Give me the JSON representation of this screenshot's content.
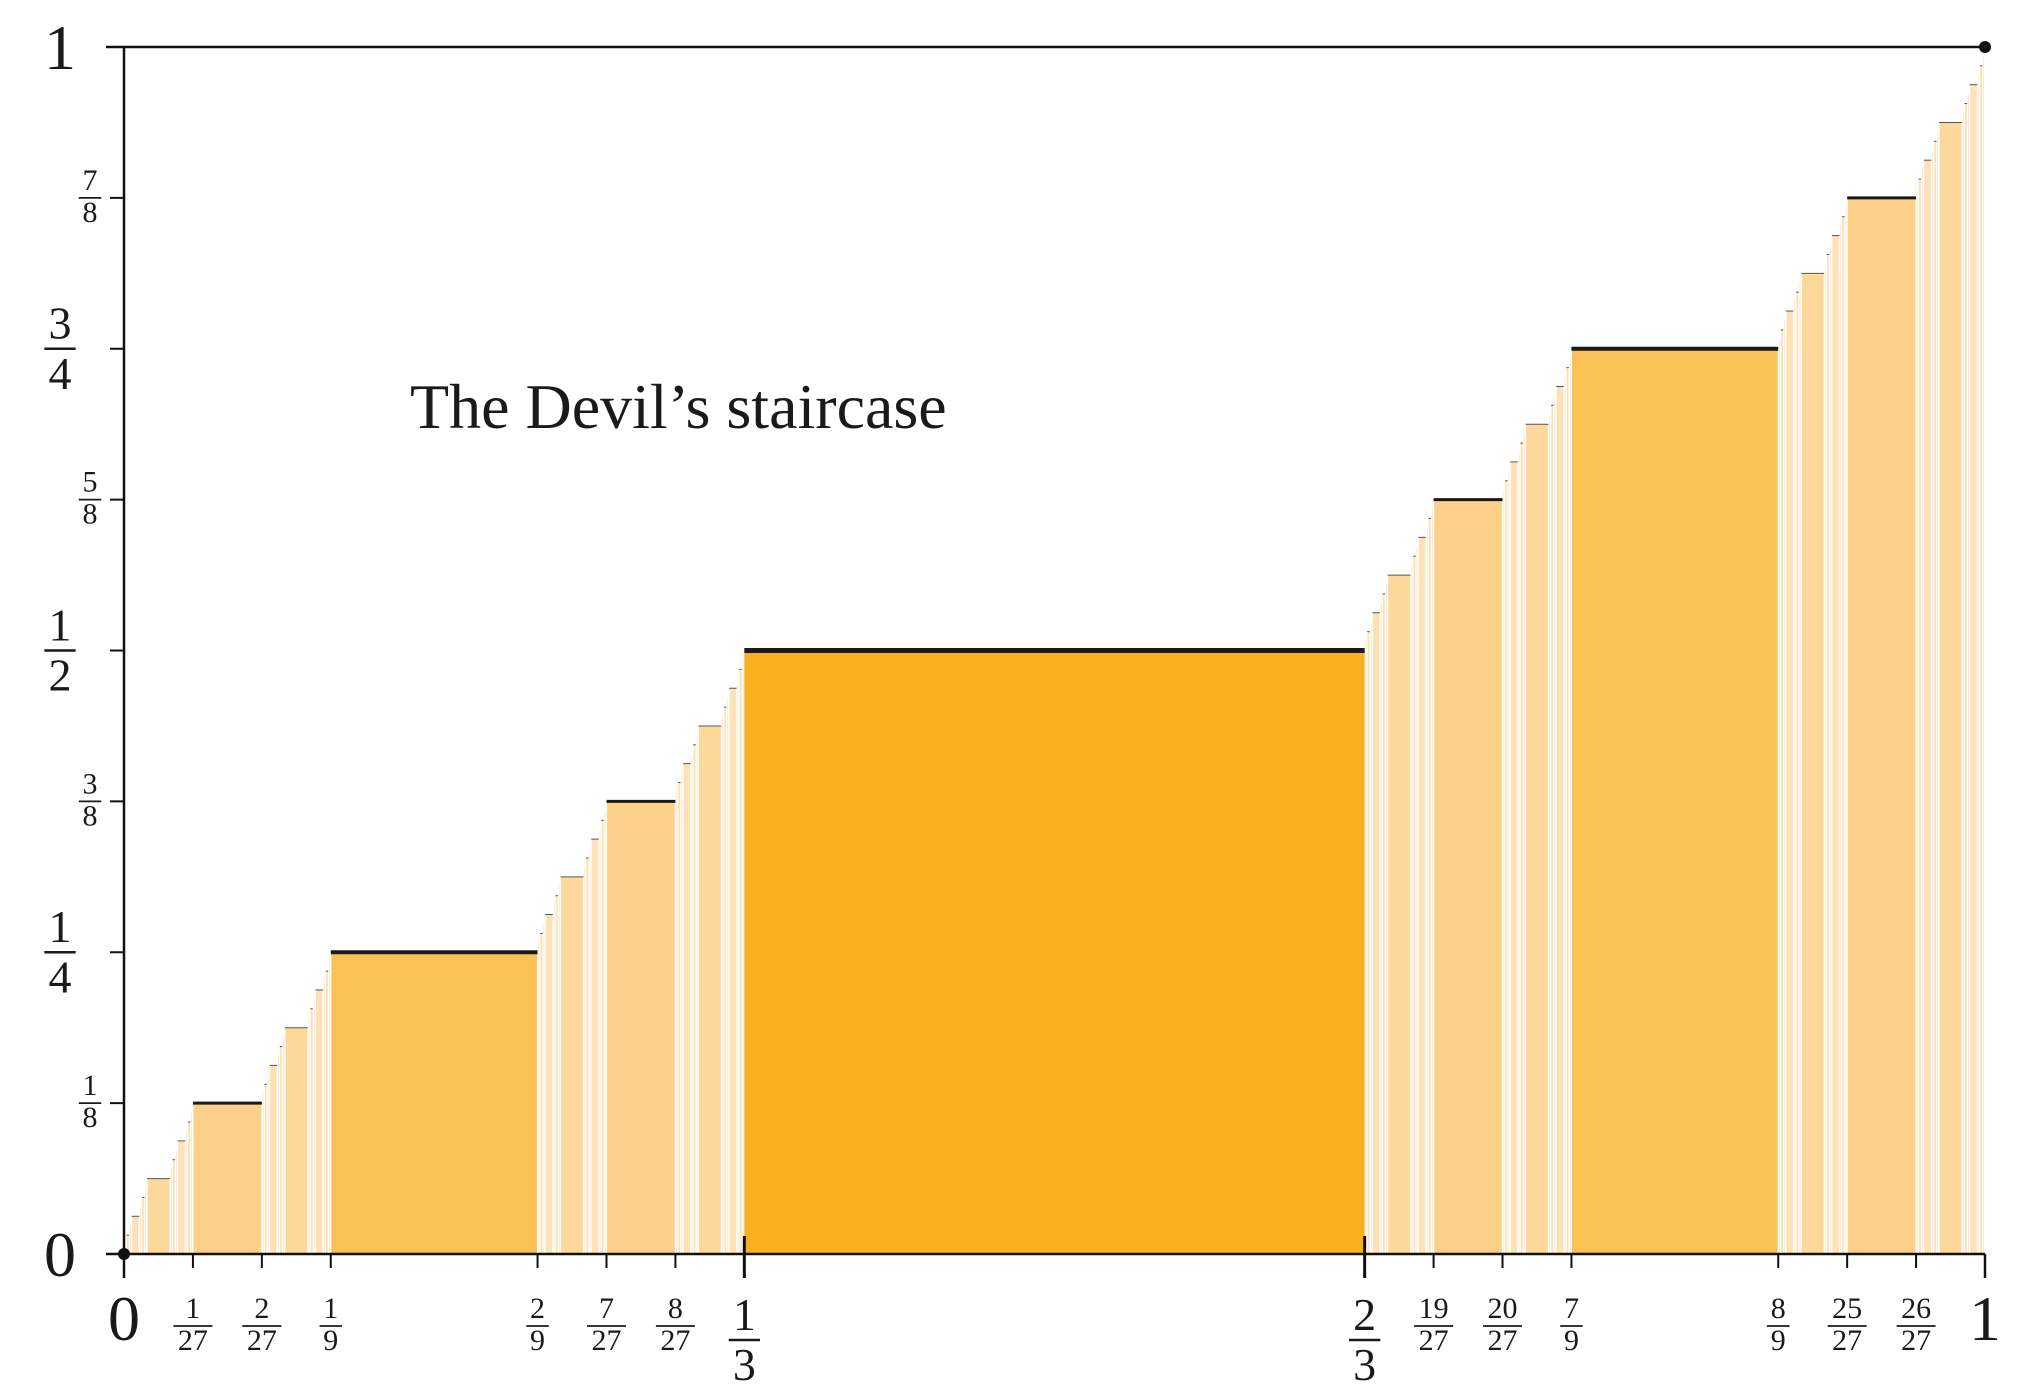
{
  "chart_data": {
    "type": "line",
    "title": "The Devil’s staircase",
    "xlim": [
      0,
      1
    ],
    "ylim": [
      0,
      1
    ],
    "grid": false,
    "steps": [
      {
        "x0": "1/3",
        "x1": "2/3",
        "y": "1/2",
        "level": 1
      },
      {
        "x0": "1/9",
        "x1": "2/9",
        "y": "1/4",
        "level": 2
      },
      {
        "x0": "7/9",
        "x1": "8/9",
        "y": "3/4",
        "level": 2
      },
      {
        "x0": "1/27",
        "x1": "2/27",
        "y": "1/8",
        "level": 3
      },
      {
        "x0": "7/27",
        "x1": "8/27",
        "y": "3/8",
        "level": 3
      },
      {
        "x0": "19/27",
        "x1": "20/27",
        "y": "5/8",
        "level": 3
      },
      {
        "x0": "25/27",
        "x1": "26/27",
        "y": "7/8",
        "level": 3
      }
    ],
    "x_ticks": [
      {
        "value": "1/27",
        "num": "1",
        "den": "27",
        "size": "small"
      },
      {
        "value": "2/27",
        "num": "2",
        "den": "27",
        "size": "small"
      },
      {
        "value": "1/9",
        "num": "1",
        "den": "9",
        "size": "small"
      },
      {
        "value": "2/9",
        "num": "2",
        "den": "9",
        "size": "small"
      },
      {
        "value": "7/27",
        "num": "7",
        "den": "27",
        "size": "small"
      },
      {
        "value": "8/27",
        "num": "8",
        "den": "27",
        "size": "small"
      },
      {
        "value": "1/3",
        "num": "1",
        "den": "3",
        "size": "large"
      },
      {
        "value": "2/3",
        "num": "2",
        "den": "3",
        "size": "large"
      },
      {
        "value": "19/27",
        "num": "19",
        "den": "27",
        "size": "small"
      },
      {
        "value": "20/27",
        "num": "20",
        "den": "27",
        "size": "small"
      },
      {
        "value": "7/9",
        "num": "7",
        "den": "9",
        "size": "small"
      },
      {
        "value": "8/9",
        "num": "8",
        "den": "9",
        "size": "small"
      },
      {
        "value": "25/27",
        "num": "25",
        "den": "27",
        "size": "small"
      },
      {
        "value": "26/27",
        "num": "26",
        "den": "27",
        "size": "small"
      }
    ],
    "x_end_labels": [
      "0",
      "1"
    ],
    "y_ticks": [
      {
        "value": "1/8",
        "num": "1",
        "den": "8",
        "size": "small"
      },
      {
        "value": "1/4",
        "num": "1",
        "den": "4",
        "size": "large"
      },
      {
        "value": "3/8",
        "num": "3",
        "den": "8",
        "size": "small"
      },
      {
        "value": "1/2",
        "num": "1",
        "den": "2",
        "size": "large"
      },
      {
        "value": "5/8",
        "num": "5",
        "den": "8",
        "size": "small"
      },
      {
        "value": "3/4",
        "num": "3",
        "den": "4",
        "size": "large"
      },
      {
        "value": "7/8",
        "num": "7",
        "den": "8",
        "size": "small"
      }
    ],
    "y_end_labels": [
      "0",
      "1"
    ],
    "colors": {
      "level1": "#f8b01e",
      "level2": "#fcc155",
      "level3": "#fdd08a",
      "level4": "#fed79a",
      "level5plus": "#fee1b6",
      "axis": "#111111",
      "step_line": "#1a1a1a"
    }
  }
}
